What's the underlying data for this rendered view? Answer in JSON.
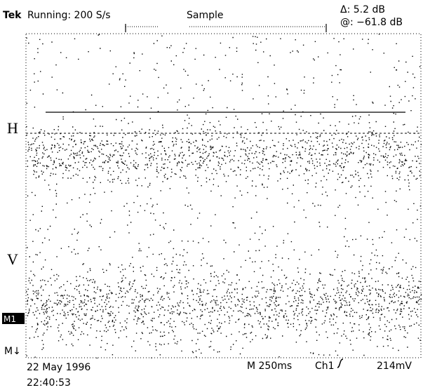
{
  "header": {
    "brand": "Tek",
    "status": "Running: 200 S/s",
    "mode": "Sample",
    "delta": "Δ: 5.2 dB",
    "at": "@: −61.8 dB"
  },
  "markers": {
    "h": "H",
    "v": "V",
    "m1": "M1",
    "m": "M↓"
  },
  "footer": {
    "date": "22 May 1996",
    "time": "22:40:53",
    "timebase": "M 250ms",
    "channel": "Ch1",
    "trigger_level": "214mV"
  }
}
